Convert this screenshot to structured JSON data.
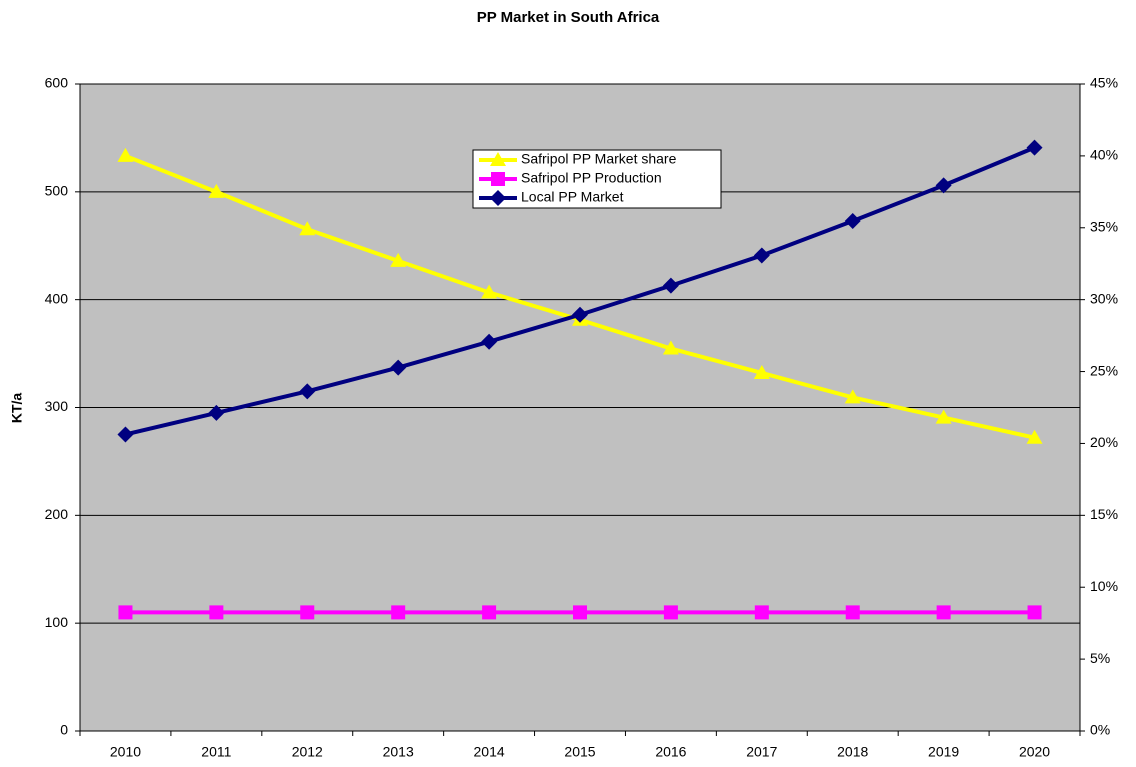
{
  "chart_data": {
    "type": "line",
    "title": "PP Market in South Africa",
    "y_label": "KT/a",
    "categories": [
      "2010",
      "2011",
      "2012",
      "2013",
      "2014",
      "2015",
      "2016",
      "2017",
      "2018",
      "2019",
      "2020"
    ],
    "series": [
      {
        "name": "Safripol PP Market share",
        "color": "#ffff00",
        "marker": "triangle",
        "axis": "y2",
        "values": [
          40,
          37.5,
          34.9,
          32.7,
          30.5,
          28.6,
          26.6,
          24.9,
          23.2,
          21.8,
          20.4
        ]
      },
      {
        "name": "Safripol PP Production",
        "color": "#ff00ff",
        "marker": "square",
        "values": [
          110,
          110,
          110,
          110,
          110,
          110,
          110,
          110,
          110,
          110,
          110
        ]
      },
      {
        "name": "Local PP Market",
        "color": "#000080",
        "marker": "diamond",
        "values": [
          275,
          295,
          315,
          337,
          361,
          386,
          413,
          441,
          473,
          506,
          541
        ]
      }
    ],
    "ylim": [
      0,
      600
    ],
    "yticks": [
      0,
      100,
      200,
      300,
      400,
      500,
      600
    ],
    "y2lim": [
      0,
      45
    ],
    "y2ticks": [
      {
        "value": 0,
        "label": "0%"
      },
      {
        "value": 5,
        "label": "5%"
      },
      {
        "value": 10,
        "label": "10%"
      },
      {
        "value": 15,
        "label": "15%"
      },
      {
        "value": 20,
        "label": "20%"
      },
      {
        "value": 25,
        "label": "25%"
      },
      {
        "value": 30,
        "label": "30%"
      },
      {
        "value": 35,
        "label": "35%"
      },
      {
        "value": 40,
        "label": "40%"
      },
      {
        "value": 45,
        "label": "45%"
      }
    ],
    "grid": true,
    "plot_background": "#c0c0c0"
  }
}
